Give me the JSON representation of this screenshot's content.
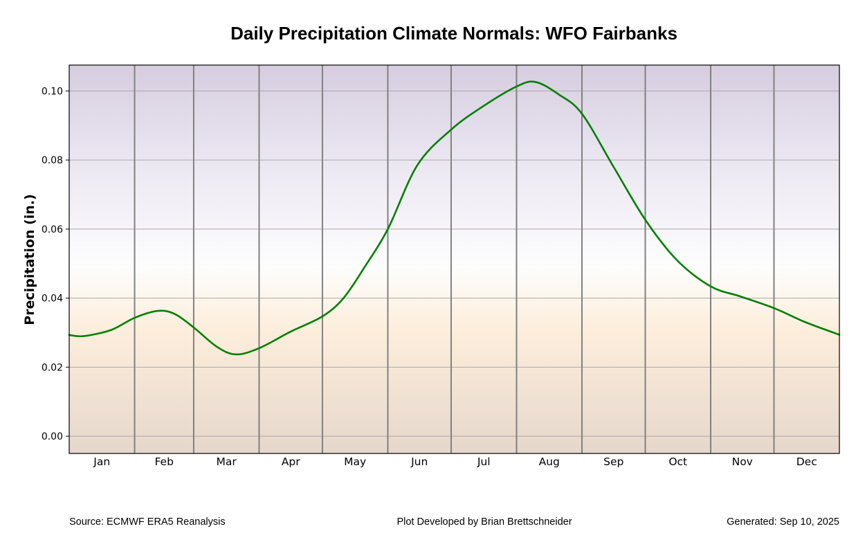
{
  "chart_data": {
    "type": "line",
    "title": "Daily Precipitation Climate Normals: WFO Fairbanks",
    "xlabel": "",
    "ylabel": "Precipitation (in.)",
    "ylim": [
      -0.005,
      0.1075
    ],
    "xlim": [
      0,
      365
    ],
    "yticks": [
      0.0,
      0.02,
      0.04,
      0.06,
      0.08,
      0.1
    ],
    "ytick_labels": [
      "0.00",
      "0.02",
      "0.04",
      "0.06",
      "0.08",
      "0.10"
    ],
    "grid": "horizontal",
    "month_boundaries_day": [
      31,
      59,
      90,
      120,
      151,
      181,
      212,
      243,
      273,
      304,
      334
    ],
    "month_labels": [
      "Jan",
      "Feb",
      "Mar",
      "Apr",
      "May",
      "Jun",
      "Jul",
      "Aug",
      "Sep",
      "Oct",
      "Nov",
      "Dec"
    ],
    "month_days": [
      31,
      28,
      31,
      30,
      31,
      30,
      31,
      31,
      30,
      31,
      30,
      31
    ],
    "background_gradient": {
      "top": "#d6cddf",
      "upper": "#ebe7f2",
      "middle": "#fdfdfd",
      "lower": "#fdeedc",
      "bottom": "#e5d7cb"
    },
    "series": [
      {
        "name": "Daily Normal Precipitation",
        "color": "#008000",
        "x_day_of_year": [
          0,
          7,
          20,
          31,
          42,
          50,
          59,
          70,
          79,
          90,
          105,
          120,
          130,
          140,
          151,
          165,
          181,
          196,
          212,
          221,
          232,
          243,
          258,
          273,
          288,
          304,
          318,
          334,
          349,
          365
        ],
        "values": [
          0.0293,
          0.029,
          0.0308,
          0.0343,
          0.0363,
          0.0354,
          0.0315,
          0.0259,
          0.0237,
          0.0255,
          0.0303,
          0.0347,
          0.04,
          0.049,
          0.06,
          0.0785,
          0.0888,
          0.0955,
          0.1013,
          0.1026,
          0.099,
          0.0934,
          0.078,
          0.0627,
          0.051,
          0.0434,
          0.0405,
          0.0371,
          0.033,
          0.0294
        ]
      }
    ]
  },
  "footer": {
    "source": "Source: ECMWF ERA5 Reanalysis",
    "credit": "Plot Developed by Brian Brettschneider",
    "generated": "Generated: Sep 10, 2025"
  }
}
